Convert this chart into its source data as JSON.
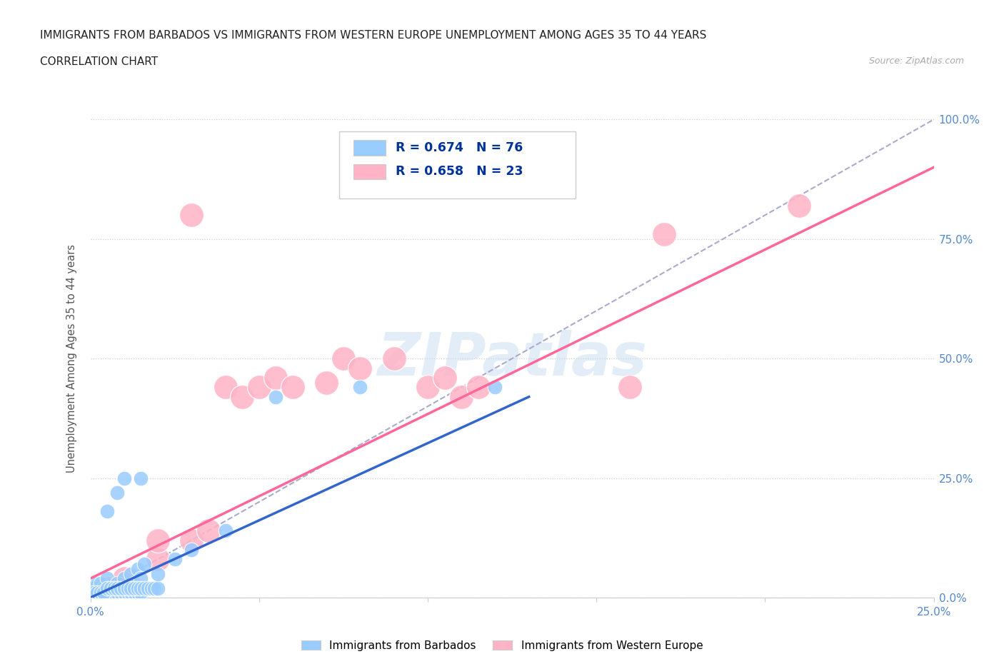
{
  "title_line1": "IMMIGRANTS FROM BARBADOS VS IMMIGRANTS FROM WESTERN EUROPE UNEMPLOYMENT AMONG AGES 35 TO 44 YEARS",
  "title_line2": "CORRELATION CHART",
  "source": "Source: ZipAtlas.com",
  "ylabel": "Unemployment Among Ages 35 to 44 years",
  "xlim": [
    0.0,
    0.25
  ],
  "ylim": [
    0.0,
    1.0
  ],
  "barbados_R": 0.674,
  "barbados_N": 76,
  "westerneurope_R": 0.658,
  "westerneurope_N": 23,
  "barbados_color": "#99ccff",
  "westerneurope_color": "#ffb3c6",
  "barbados_line_color": "#3366cc",
  "westerneurope_line_color": "#ff6699",
  "trendline_color": "#aaaacc",
  "legend_text_color": "#003399",
  "watermark_color": "#c8ddf0",
  "background_color": "#ffffff",
  "barbados_scatter": [
    [
      0.001,
      0.005
    ],
    [
      0.002,
      0.01
    ],
    [
      0.001,
      0.02
    ],
    [
      0.003,
      0.005
    ],
    [
      0.002,
      0.03
    ],
    [
      0.005,
      0.01
    ],
    [
      0.004,
      0.02
    ],
    [
      0.003,
      0.03
    ],
    [
      0.006,
      0.005
    ],
    [
      0.007,
      0.02
    ],
    [
      0.005,
      0.04
    ],
    [
      0.008,
      0.03
    ],
    [
      0.009,
      0.01
    ],
    [
      0.01,
      0.04
    ],
    [
      0.01,
      0.02
    ],
    [
      0.012,
      0.05
    ],
    [
      0.013,
      0.03
    ],
    [
      0.014,
      0.06
    ],
    [
      0.015,
      0.04
    ],
    [
      0.016,
      0.07
    ],
    [
      0.002,
      0.0
    ],
    [
      0.001,
      0.0
    ],
    [
      0.003,
      0.0
    ],
    [
      0.004,
      0.0
    ],
    [
      0.005,
      0.0
    ],
    [
      0.006,
      0.0
    ],
    [
      0.007,
      0.0
    ],
    [
      0.008,
      0.0
    ],
    [
      0.009,
      0.0
    ],
    [
      0.01,
      0.0
    ],
    [
      0.001,
      0.005
    ],
    [
      0.002,
      0.005
    ],
    [
      0.003,
      0.005
    ],
    [
      0.004,
      0.005
    ],
    [
      0.005,
      0.005
    ],
    [
      0.006,
      0.01
    ],
    [
      0.007,
      0.01
    ],
    [
      0.008,
      0.01
    ],
    [
      0.009,
      0.01
    ],
    [
      0.01,
      0.01
    ],
    [
      0.011,
      0.01
    ],
    [
      0.012,
      0.01
    ],
    [
      0.013,
      0.01
    ],
    [
      0.014,
      0.01
    ],
    [
      0.015,
      0.01
    ],
    [
      0.001,
      0.01
    ],
    [
      0.002,
      0.01
    ],
    [
      0.003,
      0.01
    ],
    [
      0.004,
      0.01
    ],
    [
      0.005,
      0.02
    ],
    [
      0.006,
      0.02
    ],
    [
      0.007,
      0.02
    ],
    [
      0.008,
      0.02
    ],
    [
      0.009,
      0.02
    ],
    [
      0.01,
      0.02
    ],
    [
      0.011,
      0.02
    ],
    [
      0.012,
      0.02
    ],
    [
      0.013,
      0.02
    ],
    [
      0.014,
      0.02
    ],
    [
      0.015,
      0.02
    ],
    [
      0.016,
      0.02
    ],
    [
      0.017,
      0.02
    ],
    [
      0.018,
      0.02
    ],
    [
      0.019,
      0.02
    ],
    [
      0.02,
      0.02
    ],
    [
      0.02,
      0.05
    ],
    [
      0.025,
      0.08
    ],
    [
      0.03,
      0.1
    ],
    [
      0.04,
      0.14
    ],
    [
      0.005,
      0.18
    ],
    [
      0.008,
      0.22
    ],
    [
      0.01,
      0.25
    ],
    [
      0.015,
      0.25
    ],
    [
      0.055,
      0.42
    ],
    [
      0.08,
      0.44
    ],
    [
      0.12,
      0.44
    ]
  ],
  "westerneurope_scatter": [
    [
      0.005,
      0.02
    ],
    [
      0.01,
      0.04
    ],
    [
      0.02,
      0.08
    ],
    [
      0.02,
      0.12
    ],
    [
      0.03,
      0.12
    ],
    [
      0.035,
      0.14
    ],
    [
      0.04,
      0.44
    ],
    [
      0.045,
      0.42
    ],
    [
      0.05,
      0.44
    ],
    [
      0.055,
      0.46
    ],
    [
      0.06,
      0.44
    ],
    [
      0.07,
      0.45
    ],
    [
      0.075,
      0.5
    ],
    [
      0.08,
      0.48
    ],
    [
      0.09,
      0.5
    ],
    [
      0.1,
      0.44
    ],
    [
      0.105,
      0.46
    ],
    [
      0.11,
      0.42
    ],
    [
      0.115,
      0.44
    ],
    [
      0.16,
      0.44
    ],
    [
      0.17,
      0.76
    ],
    [
      0.21,
      0.82
    ],
    [
      0.03,
      0.8
    ]
  ],
  "barbados_line_x": [
    0.0,
    0.13
  ],
  "barbados_line_y": [
    0.0,
    0.42
  ],
  "westerneurope_line_x": [
    0.0,
    0.25
  ],
  "westerneurope_line_y": [
    0.04,
    0.9
  ],
  "trendline_x": [
    0.0,
    0.25
  ],
  "trendline_y": [
    0.0,
    1.0
  ]
}
